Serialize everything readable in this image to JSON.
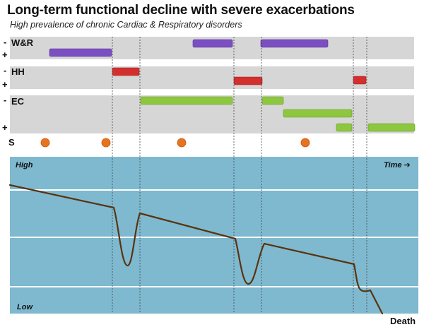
{
  "title": "Long-term functional decline with severe exacerbations",
  "subtitle": "High prevalence of chronic Cardiac & Respiratory disorders",
  "colors": {
    "band": "#d6d6d6",
    "purple": "#7b4fc2",
    "red": "#d32f2f",
    "green": "#8dc63f",
    "orange": "#e8731e",
    "plot_bg": "#7eb9cf",
    "curve": "#5a3310"
  },
  "rows": [
    {
      "label": "W&R",
      "minus": "-",
      "plus": "+"
    },
    {
      "label": "HH",
      "minus": "-",
      "plus": "+"
    },
    {
      "label": "EC",
      "minus": "-",
      "plus": "+"
    },
    {
      "label": "S"
    }
  ],
  "plot": {
    "high_label": "High",
    "low_label": "Low",
    "time_label": "Time ➔",
    "end_label": "Death"
  }
}
